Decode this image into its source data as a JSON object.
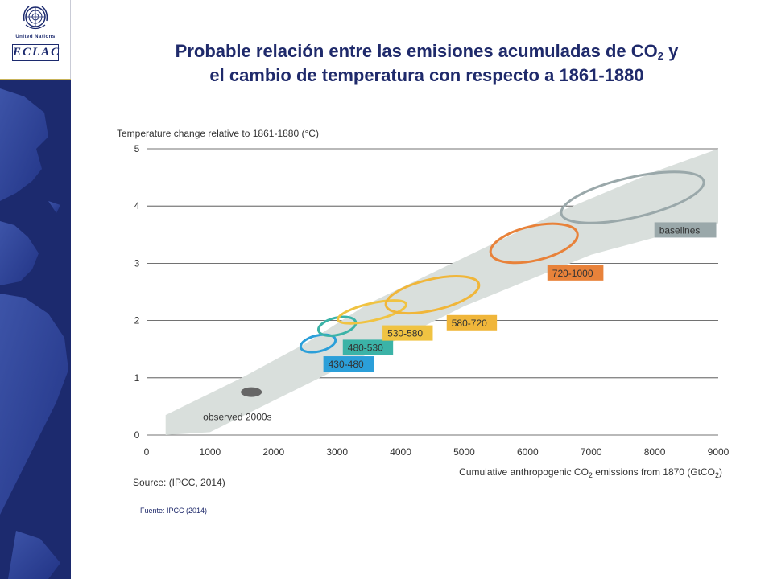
{
  "logo": {
    "un_label": "United Nations",
    "org_label": "ECLAC"
  },
  "title": {
    "line1_main": "Probable relación entre las emisiones acumuladas de CO",
    "line1_sub": "2",
    "line1_end": " y",
    "line2": "el cambio de temperatura con respecto a 1861-1880"
  },
  "footnote": "Fuente: IPCC (2014)",
  "chart_data": {
    "type": "scatter",
    "ylabel": "Temperature change relative to 1861-1880 (°C)",
    "xlabel_main": "Cumulative anthropogenic CO",
    "xlabel_sub": "2",
    "xlabel_mid": " emissions from 1870 (GtCO",
    "xlabel_sub2": "2",
    "xlabel_end": ")",
    "source": "Source: (IPCC, 2014)",
    "xlim": [
      0,
      9000
    ],
    "ylim": [
      0,
      5
    ],
    "x_ticks": [
      "0",
      "1000",
      "2000",
      "3000",
      "4000",
      "5000",
      "6000",
      "7000",
      "8000",
      "9000"
    ],
    "y_ticks": [
      "0",
      "1",
      "2",
      "3",
      "4",
      "5"
    ],
    "grid": "horizontal",
    "uncertainty_band": {
      "upper": [
        [
          300,
          0.35
        ],
        [
          1500,
          1.0
        ],
        [
          2500,
          1.6
        ],
        [
          3500,
          2.3
        ],
        [
          5000,
          3.1
        ],
        [
          6500,
          3.9
        ],
        [
          8000,
          4.6
        ],
        [
          9000,
          5.0
        ]
      ],
      "lower": [
        [
          9000,
          3.7
        ],
        [
          8000,
          3.45
        ],
        [
          7000,
          3.15
        ],
        [
          6000,
          2.7
        ],
        [
          5000,
          2.25
        ],
        [
          4000,
          1.7
        ],
        [
          3000,
          1.15
        ],
        [
          2000,
          0.6
        ],
        [
          1000,
          0.05
        ],
        [
          300,
          0.0
        ]
      ]
    },
    "observed": {
      "label": "observed 2000s",
      "x": 1650,
      "y": 0.75
    },
    "series": [
      {
        "name": "430-480",
        "color": "#2b9fd9",
        "cx": 2700,
        "cy": 1.6,
        "rx": 280,
        "ry": 0.14
      },
      {
        "name": "480-530",
        "color": "#3bb3a7",
        "cx": 3000,
        "cy": 1.9,
        "rx": 300,
        "ry": 0.15
      },
      {
        "name": "530-580",
        "color": "#f0c342",
        "cx": 3550,
        "cy": 2.15,
        "rx": 550,
        "ry": 0.15
      },
      {
        "name": "580-720",
        "color": "#f0b63a",
        "cx": 4500,
        "cy": 2.45,
        "rx": 750,
        "ry": 0.27
      },
      {
        "name": "720-1000",
        "color": "#e8823a",
        "cx": 6100,
        "cy": 3.35,
        "rx": 700,
        "ry": 0.3
      },
      {
        "name": "baselines",
        "color": "#9aa8aa",
        "cx": 7650,
        "cy": 4.15,
        "rx": 1150,
        "ry": 0.35
      }
    ]
  }
}
